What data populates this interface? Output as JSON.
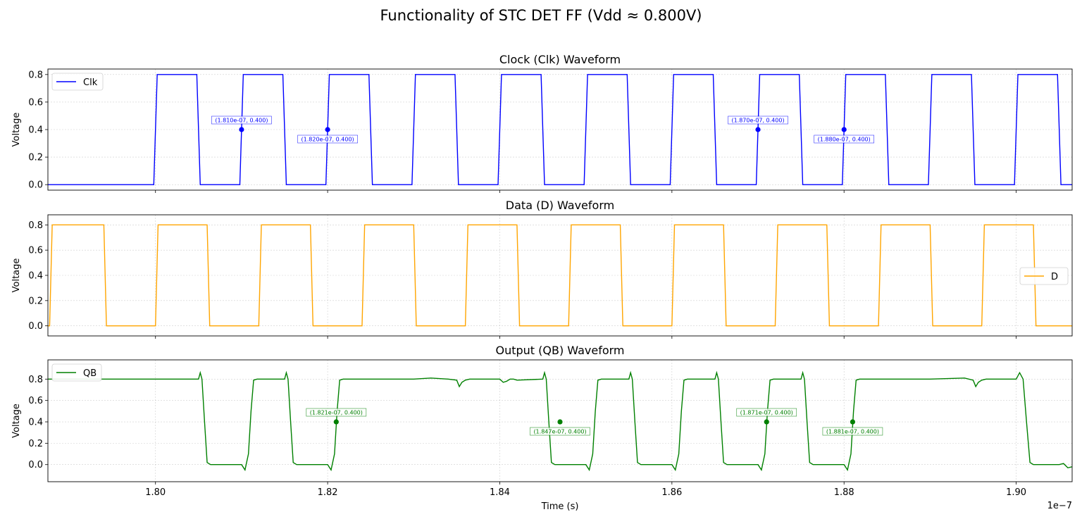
{
  "figure_title": "Functionality of STC DET FF (Vdd ≈ 0.800V)",
  "colors": {
    "clk": "#0000ff",
    "d": "#ffa500",
    "qb": "#008000",
    "grid": "#b0b0b0",
    "axes": "#000000"
  },
  "chart_data": [
    {
      "type": "line",
      "id": "clk",
      "title": "Clock (Clk) Waveform",
      "xlabel": "",
      "ylabel": "Voltage",
      "xlim": [
        1.7875e-07,
        1.9065e-07
      ],
      "ylim": [
        -0.04,
        0.84
      ],
      "xticks": [
        1.8e-07,
        1.82e-07,
        1.84e-07,
        1.86e-07,
        1.88e-07,
        1.9e-07
      ],
      "yticks": [
        0.0,
        0.2,
        0.4,
        0.6,
        0.8
      ],
      "ytick_labels": [
        "0.0",
        "0.2",
        "0.4",
        "0.6",
        "0.8"
      ],
      "grid": true,
      "legend": "upper left",
      "series": [
        {
          "name": "Clk",
          "color": "#0000ff",
          "x": [
            1.7875e-07,
            1.7998e-07,
            1.8002e-07,
            1.8048e-07,
            1.8052e-07,
            1.8098e-07,
            1.8102e-07,
            1.8148e-07,
            1.8152e-07,
            1.8198e-07,
            1.8202e-07,
            1.8248e-07,
            1.8252e-07,
            1.8298e-07,
            1.8302e-07,
            1.8348e-07,
            1.8352e-07,
            1.8398e-07,
            1.8402e-07,
            1.8448e-07,
            1.8452e-07,
            1.8498e-07,
            1.8502e-07,
            1.8548e-07,
            1.8552e-07,
            1.8598e-07,
            1.8602e-07,
            1.8648e-07,
            1.8652e-07,
            1.8698e-07,
            1.8702e-07,
            1.8748e-07,
            1.8752e-07,
            1.8798e-07,
            1.8802e-07,
            1.8848e-07,
            1.8852e-07,
            1.8898e-07,
            1.8902e-07,
            1.8948e-07,
            1.8952e-07,
            1.8998e-07,
            1.9002e-07,
            1.9048e-07,
            1.9052e-07,
            1.9065e-07
          ],
          "y": [
            0,
            0,
            0.8,
            0.8,
            0,
            0,
            0.8,
            0.8,
            0,
            0,
            0.8,
            0.8,
            0,
            0,
            0.8,
            0.8,
            0,
            0,
            0.8,
            0.8,
            0,
            0,
            0.8,
            0.8,
            0,
            0,
            0.8,
            0.8,
            0,
            0,
            0.8,
            0.8,
            0,
            0,
            0.8,
            0.8,
            0,
            0,
            0.8,
            0.8,
            0,
            0,
            0.8,
            0.8,
            0,
            0
          ]
        }
      ],
      "annotations": [
        {
          "x": 1.81e-07,
          "y": 0.4,
          "text": "(1.810e-07, 0.400)",
          "pos": "above"
        },
        {
          "x": 1.82e-07,
          "y": 0.4,
          "text": "(1.820e-07, 0.400)",
          "pos": "below"
        },
        {
          "x": 1.87e-07,
          "y": 0.4,
          "text": "(1.870e-07, 0.400)",
          "pos": "above"
        },
        {
          "x": 1.88e-07,
          "y": 0.4,
          "text": "(1.880e-07, 0.400)",
          "pos": "below"
        }
      ]
    },
    {
      "type": "line",
      "id": "d",
      "title": "Data (D) Waveform",
      "xlabel": "",
      "ylabel": "Voltage",
      "xlim": [
        1.7875e-07,
        1.9065e-07
      ],
      "ylim": [
        -0.08,
        0.88
      ],
      "xticks": [
        1.8e-07,
        1.82e-07,
        1.84e-07,
        1.86e-07,
        1.88e-07,
        1.9e-07
      ],
      "yticks": [
        0.0,
        0.2,
        0.4,
        0.6,
        0.8
      ],
      "ytick_labels": [
        "0.0",
        "0.2",
        "0.4",
        "0.6",
        "0.8"
      ],
      "grid": true,
      "legend": "center right",
      "series": [
        {
          "name": "D",
          "color": "#ffa500",
          "x": [
            1.7875e-07,
            1.7877e-07,
            1.788e-07,
            1.794e-07,
            1.7943e-07,
            1.8e-07,
            1.8003e-07,
            1.806e-07,
            1.8063e-07,
            1.812e-07,
            1.8123e-07,
            1.818e-07,
            1.8183e-07,
            1.824e-07,
            1.8243e-07,
            1.83e-07,
            1.8303e-07,
            1.836e-07,
            1.8363e-07,
            1.842e-07,
            1.8423e-07,
            1.848e-07,
            1.8483e-07,
            1.854e-07,
            1.8543e-07,
            1.86e-07,
            1.8603e-07,
            1.866e-07,
            1.8663e-07,
            1.872e-07,
            1.8723e-07,
            1.878e-07,
            1.8783e-07,
            1.884e-07,
            1.8843e-07,
            1.89e-07,
            1.8903e-07,
            1.896e-07,
            1.8963e-07,
            1.902e-07,
            1.9023e-07,
            1.9065e-07
          ],
          "y": [
            0,
            0,
            0.8,
            0.8,
            0,
            0,
            0.8,
            0.8,
            0,
            0,
            0.8,
            0.8,
            0,
            0,
            0.8,
            0.8,
            0,
            0,
            0.8,
            0.8,
            0,
            0,
            0.8,
            0.8,
            0,
            0,
            0.8,
            0.8,
            0,
            0,
            0.8,
            0.8,
            0,
            0,
            0.8,
            0.8,
            0,
            0,
            0.8,
            0.8,
            0,
            0
          ]
        }
      ]
    },
    {
      "type": "line",
      "id": "qb",
      "title": "Output (QB) Waveform",
      "xlabel": "Time (s)",
      "ylabel": "Voltage",
      "x_offset_label": "1e−7",
      "xlim": [
        1.7875e-07,
        1.9065e-07
      ],
      "ylim": [
        -0.16,
        0.98
      ],
      "xticks": [
        1.8e-07,
        1.82e-07,
        1.84e-07,
        1.86e-07,
        1.88e-07,
        1.9e-07
      ],
      "xtick_labels": [
        "1.80",
        "1.82",
        "1.84",
        "1.86",
        "1.88",
        "1.90"
      ],
      "yticks": [
        0.0,
        0.2,
        0.4,
        0.6,
        0.8
      ],
      "ytick_labels": [
        "0.0",
        "0.2",
        "0.4",
        "0.6",
        "0.8"
      ],
      "grid": true,
      "legend": "upper left",
      "series": [
        {
          "name": "QB",
          "color": "#008000",
          "x": [
            1.7875e-07,
            1.805e-07,
            1.8052e-07,
            1.8054e-07,
            1.8057e-07,
            1.806e-07,
            1.8064e-07,
            1.81e-07,
            1.8104e-07,
            1.8108e-07,
            1.8111e-07,
            1.8114e-07,
            1.8118e-07,
            1.815e-07,
            1.8152e-07,
            1.8154e-07,
            1.8157e-07,
            1.816e-07,
            1.8164e-07,
            1.82e-07,
            1.8204e-07,
            1.8208e-07,
            1.8211e-07,
            1.8214e-07,
            1.8218e-07,
            1.83e-07,
            1.832e-07,
            1.834e-07,
            1.835e-07,
            1.8353e-07,
            1.8356e-07,
            1.836e-07,
            1.8365e-07,
            1.84e-07,
            1.8404e-07,
            1.8408e-07,
            1.8412e-07,
            1.8416e-07,
            1.842e-07,
            1.845e-07,
            1.8452e-07,
            1.8454e-07,
            1.8457e-07,
            1.846e-07,
            1.8464e-07,
            1.85e-07,
            1.8504e-07,
            1.8508e-07,
            1.8511e-07,
            1.8514e-07,
            1.8518e-07,
            1.855e-07,
            1.8552e-07,
            1.8554e-07,
            1.8557e-07,
            1.856e-07,
            1.8564e-07,
            1.86e-07,
            1.8604e-07,
            1.8608e-07,
            1.8611e-07,
            1.8614e-07,
            1.8618e-07,
            1.865e-07,
            1.8652e-07,
            1.8654e-07,
            1.8657e-07,
            1.866e-07,
            1.8664e-07,
            1.87e-07,
            1.8704e-07,
            1.8708e-07,
            1.8711e-07,
            1.8714e-07,
            1.8718e-07,
            1.875e-07,
            1.8752e-07,
            1.8754e-07,
            1.8757e-07,
            1.876e-07,
            1.8764e-07,
            1.88e-07,
            1.8804e-07,
            1.8808e-07,
            1.8811e-07,
            1.8814e-07,
            1.8818e-07,
            1.89e-07,
            1.894e-07,
            1.895e-07,
            1.8953e-07,
            1.8956e-07,
            1.896e-07,
            1.8965e-07,
            1.9e-07,
            1.9004e-07,
            1.9008e-07,
            1.9012e-07,
            1.9016e-07,
            1.902e-07,
            1.905e-07,
            1.9055e-07,
            1.906e-07,
            1.9065e-07
          ],
          "y": [
            0.8,
            0.8,
            0.86,
            0.8,
            0.4,
            0.02,
            0.0,
            0.0,
            -0.05,
            0.1,
            0.5,
            0.79,
            0.8,
            0.8,
            0.86,
            0.8,
            0.4,
            0.02,
            0.0,
            0.0,
            -0.05,
            0.1,
            0.5,
            0.79,
            0.8,
            0.8,
            0.81,
            0.8,
            0.79,
            0.73,
            0.77,
            0.79,
            0.8,
            0.8,
            0.77,
            0.78,
            0.8,
            0.8,
            0.79,
            0.8,
            0.86,
            0.8,
            0.4,
            0.02,
            0.0,
            0.0,
            -0.05,
            0.1,
            0.5,
            0.79,
            0.8,
            0.8,
            0.86,
            0.8,
            0.4,
            0.02,
            0.0,
            0.0,
            -0.05,
            0.1,
            0.5,
            0.79,
            0.8,
            0.8,
            0.86,
            0.8,
            0.4,
            0.02,
            0.0,
            0.0,
            -0.05,
            0.1,
            0.5,
            0.79,
            0.8,
            0.8,
            0.86,
            0.8,
            0.4,
            0.02,
            0.0,
            0.0,
            -0.05,
            0.1,
            0.5,
            0.79,
            0.8,
            0.8,
            0.81,
            0.79,
            0.73,
            0.77,
            0.79,
            0.8,
            0.8,
            0.86,
            0.8,
            0.4,
            0.02,
            0.0,
            0.0,
            0.01,
            -0.03,
            -0.02
          ]
        }
      ],
      "annotations": [
        {
          "x": 1.821e-07,
          "y": 0.4,
          "text": "(1.821e-07, 0.400)",
          "pos": "above"
        },
        {
          "x": 1.847e-07,
          "y": 0.4,
          "text": "(1.847e-07, 0.400)",
          "pos": "below"
        },
        {
          "x": 1.871e-07,
          "y": 0.4,
          "text": "(1.871e-07, 0.400)",
          "pos": "above"
        },
        {
          "x": 1.881e-07,
          "y": 0.4,
          "text": "(1.881e-07, 0.400)",
          "pos": "below"
        }
      ]
    }
  ]
}
